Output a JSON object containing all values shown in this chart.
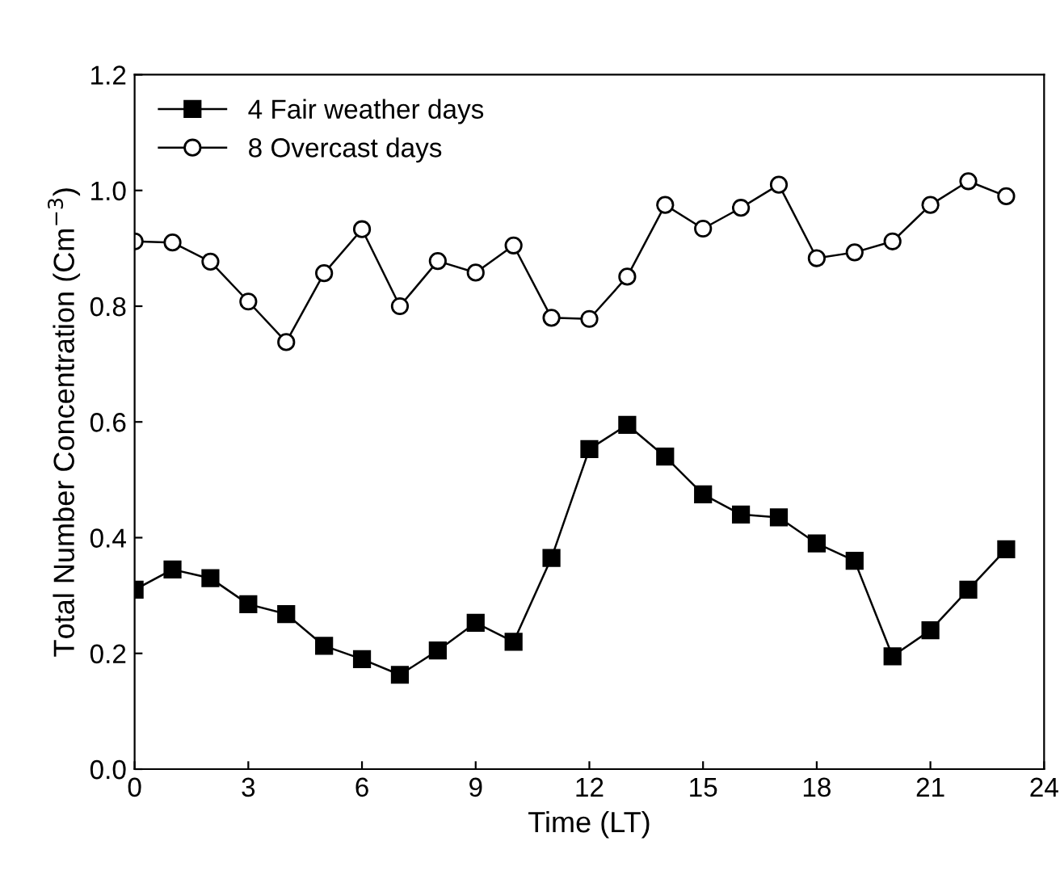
{
  "chart_data": {
    "type": "line",
    "xlabel": "Time (LT)",
    "ylabel": "Total Number Concentration (Cm$^{−3}$)",
    "x": [
      0,
      1,
      2,
      3,
      4,
      5,
      6,
      7,
      8,
      9,
      10,
      11,
      12,
      13,
      14,
      15,
      16,
      17,
      18,
      19,
      20,
      21,
      22,
      23
    ],
    "series": [
      {
        "name": "4 Fair weather days",
        "color": "#000000",
        "marker": "square",
        "values": [
          0.31,
          0.345,
          0.33,
          0.285,
          0.268,
          0.213,
          0.19,
          0.163,
          0.205,
          0.253,
          0.22,
          0.365,
          0.553,
          0.595,
          0.54,
          0.475,
          0.44,
          0.435,
          0.39,
          0.36,
          0.195,
          0.24,
          0.31,
          0.38
        ]
      },
      {
        "name": "8 Overcast days",
        "color": "#000000",
        "marker": "circle",
        "values": [
          0.912,
          0.91,
          0.877,
          0.808,
          0.738,
          0.857,
          0.933,
          0.8,
          0.878,
          0.858,
          0.905,
          0.78,
          0.778,
          0.851,
          0.975,
          0.934,
          0.97,
          1.01,
          0.883,
          0.893,
          0.912,
          0.975,
          1.016,
          0.99
        ]
      }
    ],
    "xlim": [
      0,
      24
    ],
    "xticks": [
      0,
      3,
      6,
      9,
      12,
      15,
      18,
      21,
      24
    ],
    "ylim": [
      0,
      1.2
    ],
    "yticks": [
      {
        "value": 0,
        "label": "0.0"
      },
      {
        "value": 0.2,
        "label": "0.2"
      },
      {
        "value": 0.4,
        "label": "0.4"
      },
      {
        "value": 0.6,
        "label": "0.6"
      },
      {
        "value": 0.8,
        "label": "0.8"
      },
      {
        "value": 1.0,
        "label": "1.0"
      },
      {
        "value": 1.2,
        "label": "1.2"
      }
    ],
    "grid": false,
    "legend": "top left",
    "line_style": "solid"
  }
}
